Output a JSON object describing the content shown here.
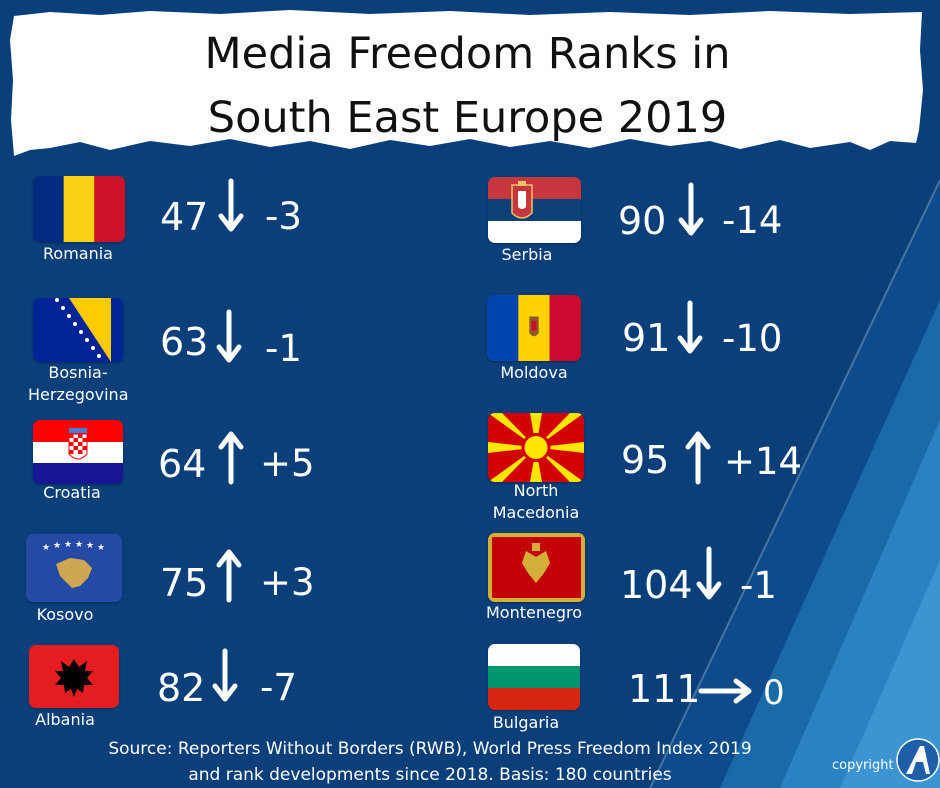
{
  "title": {
    "line1": "Media Freedom Ranks in",
    "line2": "South East Europe 2019"
  },
  "countries": [
    {
      "name": "Romania",
      "rank": "47",
      "change": "-3",
      "direction": "down",
      "flag_icon": "romania-flag-icon"
    },
    {
      "name": "Bosnia-",
      "name2": "Herzegovina",
      "rank": "63",
      "change": "-1",
      "direction": "down",
      "flag_icon": "bosnia-herzegovina-flag-icon"
    },
    {
      "name": "Croatia",
      "rank": "64",
      "change": "+5",
      "direction": "up",
      "flag_icon": "croatia-flag-icon"
    },
    {
      "name": "Kosovo",
      "rank": "75",
      "change": "+3",
      "direction": "up",
      "flag_icon": "kosovo-flag-icon"
    },
    {
      "name": "Albania",
      "rank": "82",
      "change": "-7",
      "direction": "down",
      "flag_icon": "albania-flag-icon"
    },
    {
      "name": "Serbia",
      "rank": "90",
      "change": "-14",
      "direction": "down",
      "flag_icon": "serbia-flag-icon"
    },
    {
      "name": "Moldova",
      "rank": "91",
      "change": "-10",
      "direction": "down",
      "flag_icon": "moldova-flag-icon"
    },
    {
      "name": "North",
      "name2": "Macedonia",
      "rank": "95",
      "change": "+14",
      "direction": "up",
      "flag_icon": "north-macedonia-flag-icon"
    },
    {
      "name": "Montenegro",
      "rank": "104",
      "change": "-1",
      "direction": "down",
      "flag_icon": "montenegro-flag-icon"
    },
    {
      "name": "Bulgaria",
      "rank": "111",
      "change": "0",
      "direction": "right",
      "flag_icon": "bulgaria-flag-icon"
    }
  ],
  "source": {
    "line1": "Source: Reporters Without Borders (RWB), World Press Freedom Index 2019",
    "line2": "and rank developments since 2018. Basis: 180 countries"
  },
  "copyright": "copyright",
  "colors": {
    "background": "#0a3f7a",
    "text": "#ffffff",
    "banner": "#ffffff"
  }
}
